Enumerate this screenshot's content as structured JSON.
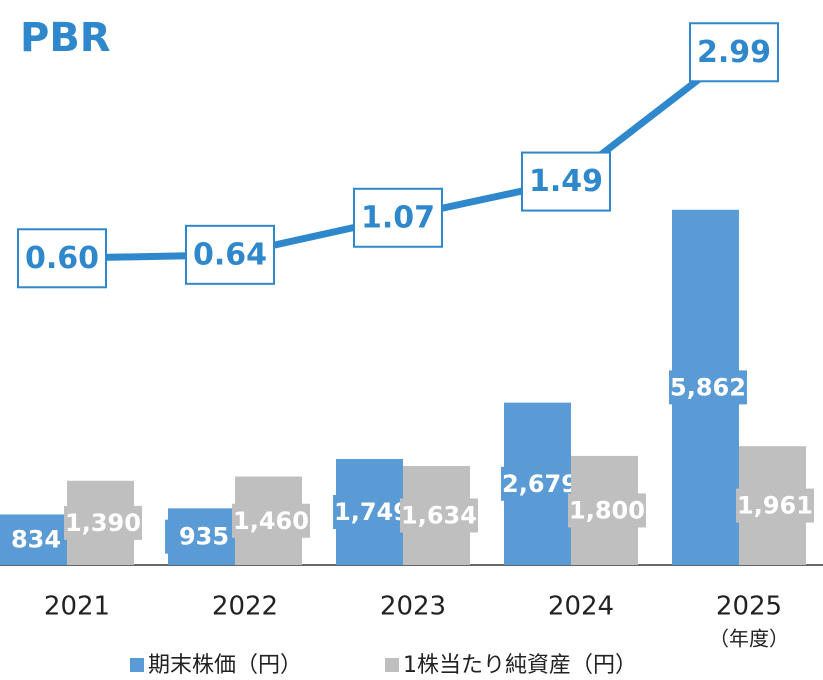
{
  "chart_data": {
    "type": "bar_line",
    "title": "PBR",
    "categories": [
      "2021",
      "2022",
      "2023",
      "2024",
      "2025"
    ],
    "x_unit_label": "（年度）",
    "series": [
      {
        "name": "期末株価（円）",
        "color": "#5b9bd5",
        "values": [
          834,
          935,
          1749,
          2679,
          5862
        ],
        "value_labels": [
          "834",
          "935",
          "1,749",
          "2,679",
          "5,862"
        ]
      },
      {
        "name": "1株当たり純資産（円）",
        "color": "#bfbfbf",
        "values": [
          1390,
          1460,
          1634,
          1800,
          1961
        ],
        "value_labels": [
          "1,390",
          "1,460",
          "1,634",
          "1,800",
          "1,961"
        ]
      }
    ],
    "line": {
      "color": "#2f87cc",
      "values": [
        0.6,
        0.64,
        1.07,
        1.49,
        2.99
      ],
      "value_labels": [
        "0.60",
        "0.64",
        "1.07",
        "1.49",
        "2.99"
      ]
    }
  }
}
